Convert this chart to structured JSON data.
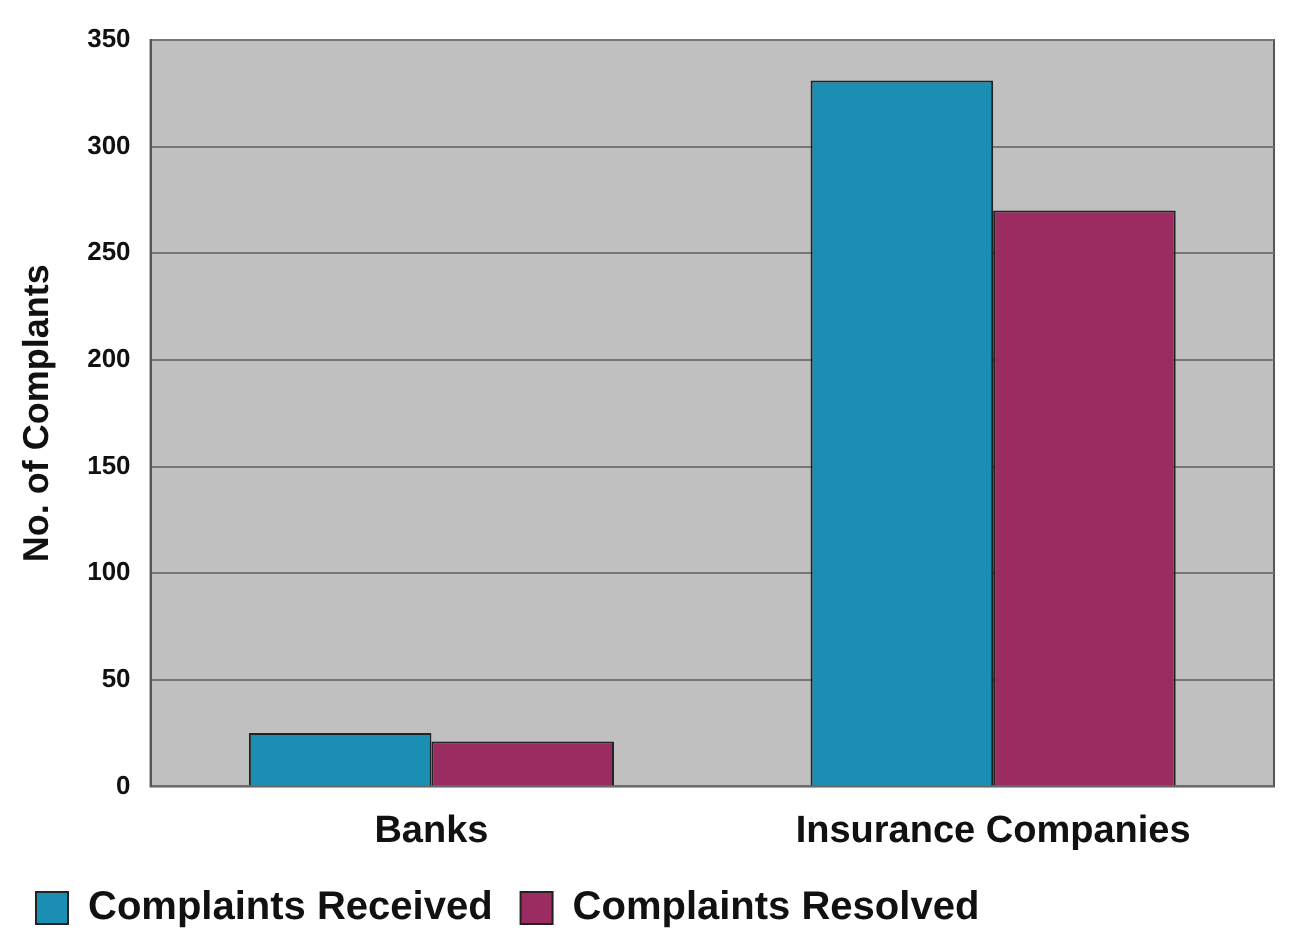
{
  "chart_data": {
    "type": "bar",
    "ylabel": "No. of Complants",
    "categories": [
      "Banks",
      "Insurance Companies"
    ],
    "series": [
      {
        "name": "Complaints Received",
        "color": "#1a8fb3",
        "values": [
          25,
          331
        ]
      },
      {
        "name": "Complaints Resolved",
        "color": "#9b2c62",
        "values": [
          21,
          270
        ]
      }
    ],
    "ylim": [
      0,
      350
    ],
    "yticks": [
      0,
      50,
      100,
      150,
      200,
      250,
      300,
      350
    ],
    "grid": "y",
    "legend": "bottom"
  }
}
